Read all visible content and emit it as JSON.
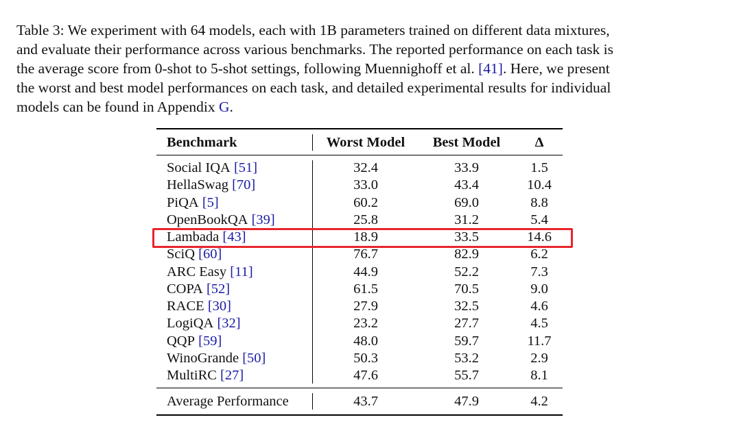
{
  "caption": {
    "lines": [
      [
        "Table 3: We experiment with 64 models, each with 1B parameters trained on different data mixtures,"
      ],
      [
        "and evaluate their performance across various benchmarks. The reported performance on each task is"
      ],
      [
        "the average score from 0-shot to 5-shot settings, following Muennighoff et al. ",
        "[41]",
        ". Here, we present"
      ],
      [
        "the worst and best model performances on each task, and detailed experimental results for individual"
      ],
      [
        "models can be found in Appendix ",
        "G",
        "."
      ]
    ]
  },
  "table": {
    "header": [
      "Benchmark",
      "Worst Model",
      "Best Model",
      "Δ"
    ],
    "rows": [
      {
        "benchmark": "Social IQA",
        "ref": "[51]",
        "worst": "32.4",
        "best": "33.9",
        "delta": "1.5"
      },
      {
        "benchmark": "HellaSwag",
        "ref": "[70]",
        "worst": "33.0",
        "best": "43.4",
        "delta": "10.4"
      },
      {
        "benchmark": "PiQA",
        "ref": "[5]",
        "worst": "60.2",
        "best": "69.0",
        "delta": "8.8"
      },
      {
        "benchmark": "OpenBookQA",
        "ref": "[39]",
        "worst": "25.8",
        "best": "31.2",
        "delta": "5.4"
      },
      {
        "benchmark": "Lambada",
        "ref": "[43]",
        "worst": "18.9",
        "best": "33.5",
        "delta": "14.6"
      },
      {
        "benchmark": "SciQ",
        "ref": "[60]",
        "worst": "76.7",
        "best": "82.9",
        "delta": "6.2"
      },
      {
        "benchmark": "ARC Easy",
        "ref": "[11]",
        "worst": "44.9",
        "best": "52.2",
        "delta": "7.3"
      },
      {
        "benchmark": "COPA",
        "ref": "[52]",
        "worst": "61.5",
        "best": "70.5",
        "delta": "9.0"
      },
      {
        "benchmark": "RACE",
        "ref": "[30]",
        "worst": "27.9",
        "best": "32.5",
        "delta": "4.6"
      },
      {
        "benchmark": "LogiQA",
        "ref": "[32]",
        "worst": "23.2",
        "best": "27.7",
        "delta": "4.5"
      },
      {
        "benchmark": "QQP",
        "ref": "[59]",
        "worst": "48.0",
        "best": "59.7",
        "delta": "11.7"
      },
      {
        "benchmark": "WinoGrande",
        "ref": "[50]",
        "worst": "50.3",
        "best": "53.2",
        "delta": "2.9"
      },
      {
        "benchmark": "MultiRC",
        "ref": "[27]",
        "worst": "47.6",
        "best": "55.7",
        "delta": "8.1"
      }
    ],
    "average": {
      "benchmark": "Average Performance",
      "worst": "43.7",
      "best": "47.9",
      "delta": "4.2"
    }
  }
}
